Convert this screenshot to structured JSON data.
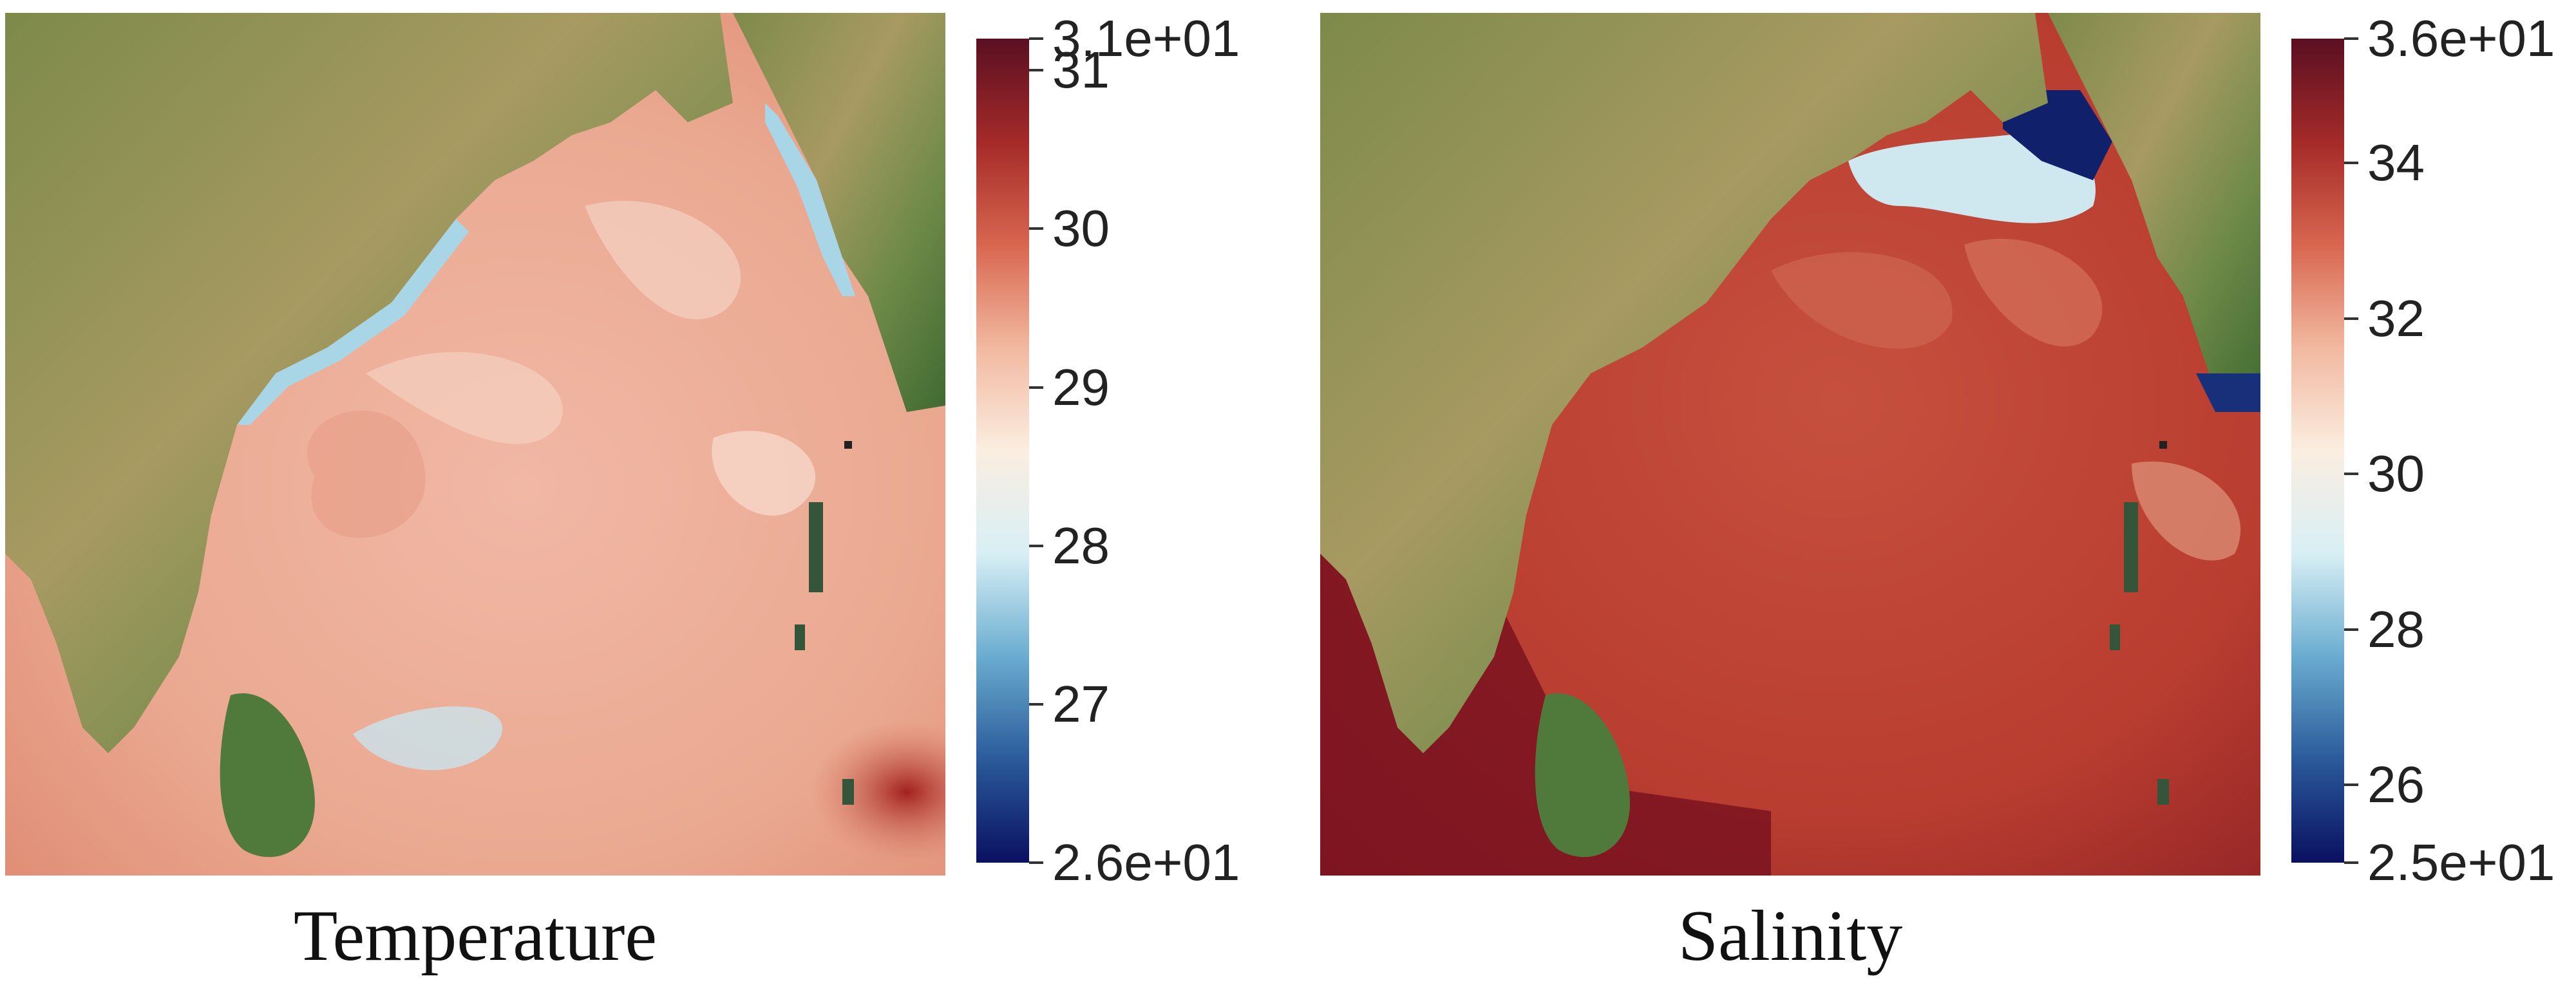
{
  "panels": [
    {
      "id": "temp",
      "caption": "Temperature",
      "colorbar": {
        "min_label": "2.6e+01",
        "max_label": "3.1e+01",
        "min": 26,
        "max": 31.2,
        "ticks": [
          {
            "value": 31.0,
            "label": "31"
          },
          {
            "value": 30.0,
            "label": "30"
          },
          {
            "value": 29.0,
            "label": "29"
          },
          {
            "value": 28.0,
            "label": "28"
          },
          {
            "value": 27.0,
            "label": "27"
          }
        ],
        "colors": [
          "#0a1060",
          "#2a5a9a",
          "#6aacd0",
          "#d8eff5",
          "#fbeee0",
          "#f2b8a0",
          "#d8664f",
          "#a42a28",
          "#5a0f22"
        ]
      }
    },
    {
      "id": "sal",
      "caption": "Salinity",
      "colorbar": {
        "min_label": "2.5e+01",
        "max_label": "3.6e+01",
        "min": 25,
        "max": 35.6,
        "ticks": [
          {
            "value": 34,
            "label": "34"
          },
          {
            "value": 32,
            "label": "32"
          },
          {
            "value": 30,
            "label": "30"
          },
          {
            "value": 28,
            "label": "28"
          },
          {
            "value": 26,
            "label": "26"
          }
        ],
        "colors": [
          "#0a1060",
          "#2a5a9a",
          "#6aacd0",
          "#d8eff5",
          "#fbeee0",
          "#f2b8a0",
          "#d8664f",
          "#a42a28",
          "#5a0f22"
        ]
      }
    }
  ]
}
